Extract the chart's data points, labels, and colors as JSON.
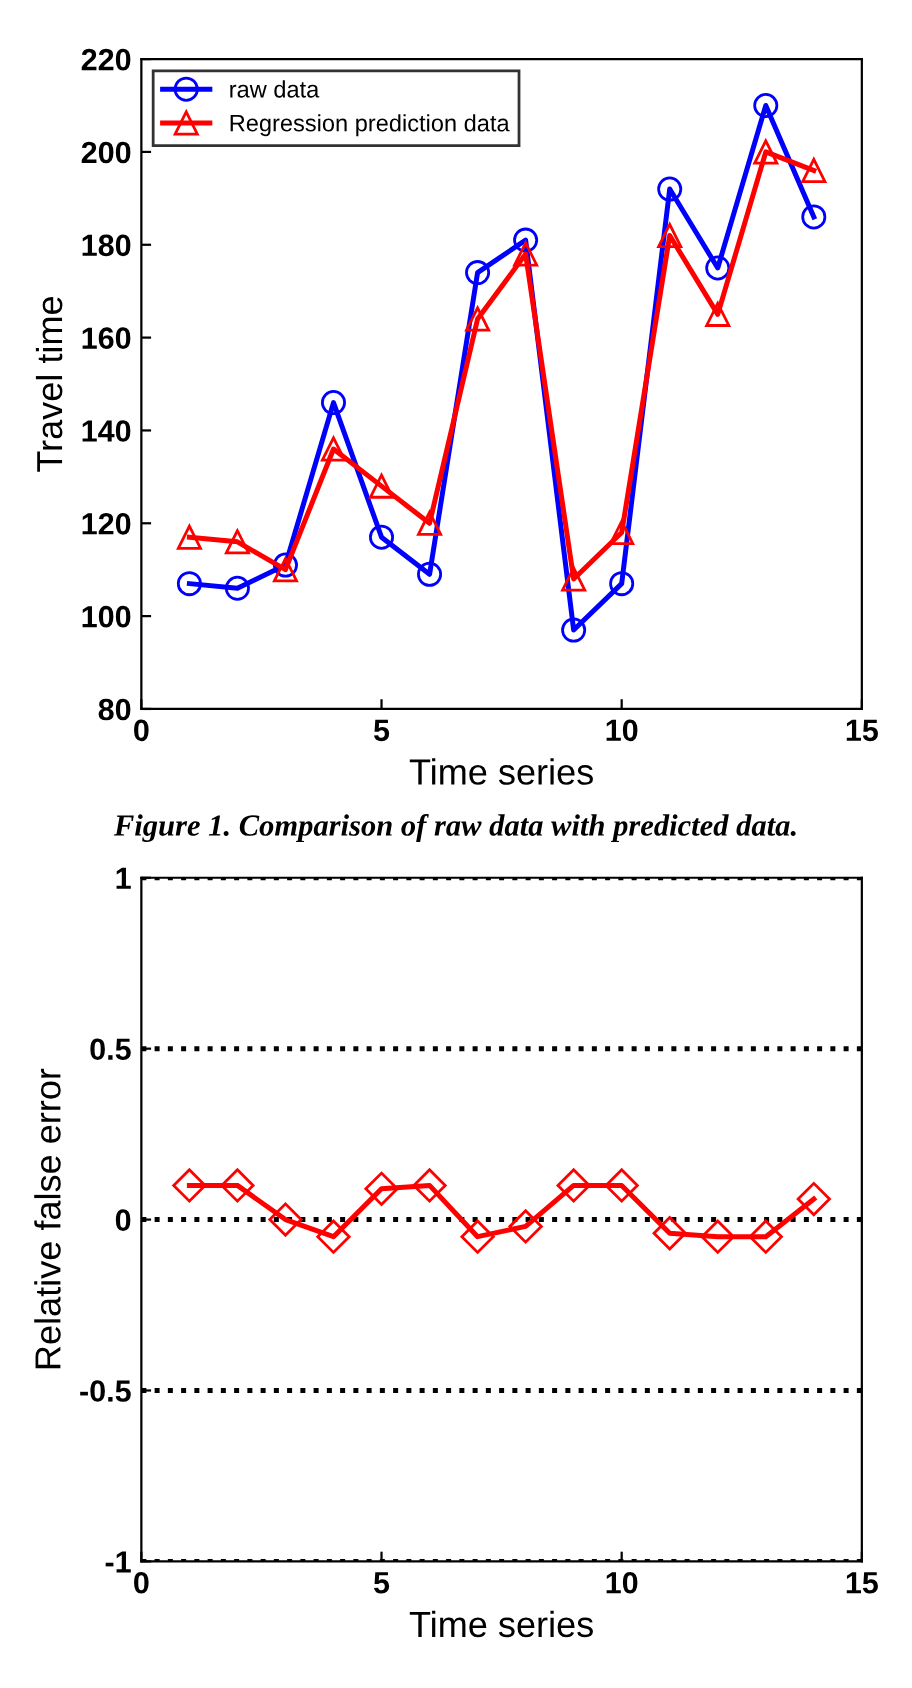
{
  "chart_data": [
    {
      "type": "line",
      "xlabel": "Time series",
      "ylabel": "Travel time",
      "x": [
        1,
        2,
        3,
        4,
        5,
        6,
        7,
        8,
        9,
        10,
        11,
        12,
        13,
        14
      ],
      "xlim": [
        0,
        15
      ],
      "xticks": [
        0,
        5,
        10,
        15
      ],
      "ylim": [
        80,
        220
      ],
      "yticks": [
        80,
        100,
        120,
        140,
        160,
        180,
        200,
        220
      ],
      "legend": "top left",
      "grid": false,
      "series": [
        {
          "name": "raw data",
          "color": "#0000ff",
          "marker": "circle",
          "values": [
            107,
            106,
            111,
            146,
            117,
            109,
            174,
            181,
            97,
            107,
            192,
            175,
            210,
            186
          ]
        },
        {
          "name": "Regression prediction data",
          "color": "#ff0000",
          "marker": "triangle",
          "values": [
            117,
            116,
            110,
            136,
            128,
            120,
            164,
            178,
            108,
            118,
            182,
            165,
            200,
            196
          ]
        }
      ],
      "annotations": [
        "Figure 1. Comparison of raw data with predicted data."
      ]
    },
    {
      "type": "line",
      "xlabel": "Time series",
      "ylabel": "Relative false error",
      "x": [
        1,
        2,
        3,
        4,
        5,
        6,
        7,
        8,
        9,
        10,
        11,
        12,
        13,
        14
      ],
      "xlim": [
        0,
        15
      ],
      "xticks": [
        0,
        5,
        10,
        15
      ],
      "ylim": [
        -1,
        1
      ],
      "yticks": [
        -1,
        -0.5,
        0,
        0.5,
        1
      ],
      "grid": "y",
      "legend": false,
      "series": [
        {
          "color": "#ff0000",
          "marker": "diamond",
          "values": [
            0.1,
            0.1,
            0,
            -0.05,
            0.09,
            0.1,
            -0.05,
            -0.02,
            0.1,
            0.1,
            -0.04,
            -0.05,
            -0.05,
            0.06
          ]
        }
      ]
    }
  ]
}
